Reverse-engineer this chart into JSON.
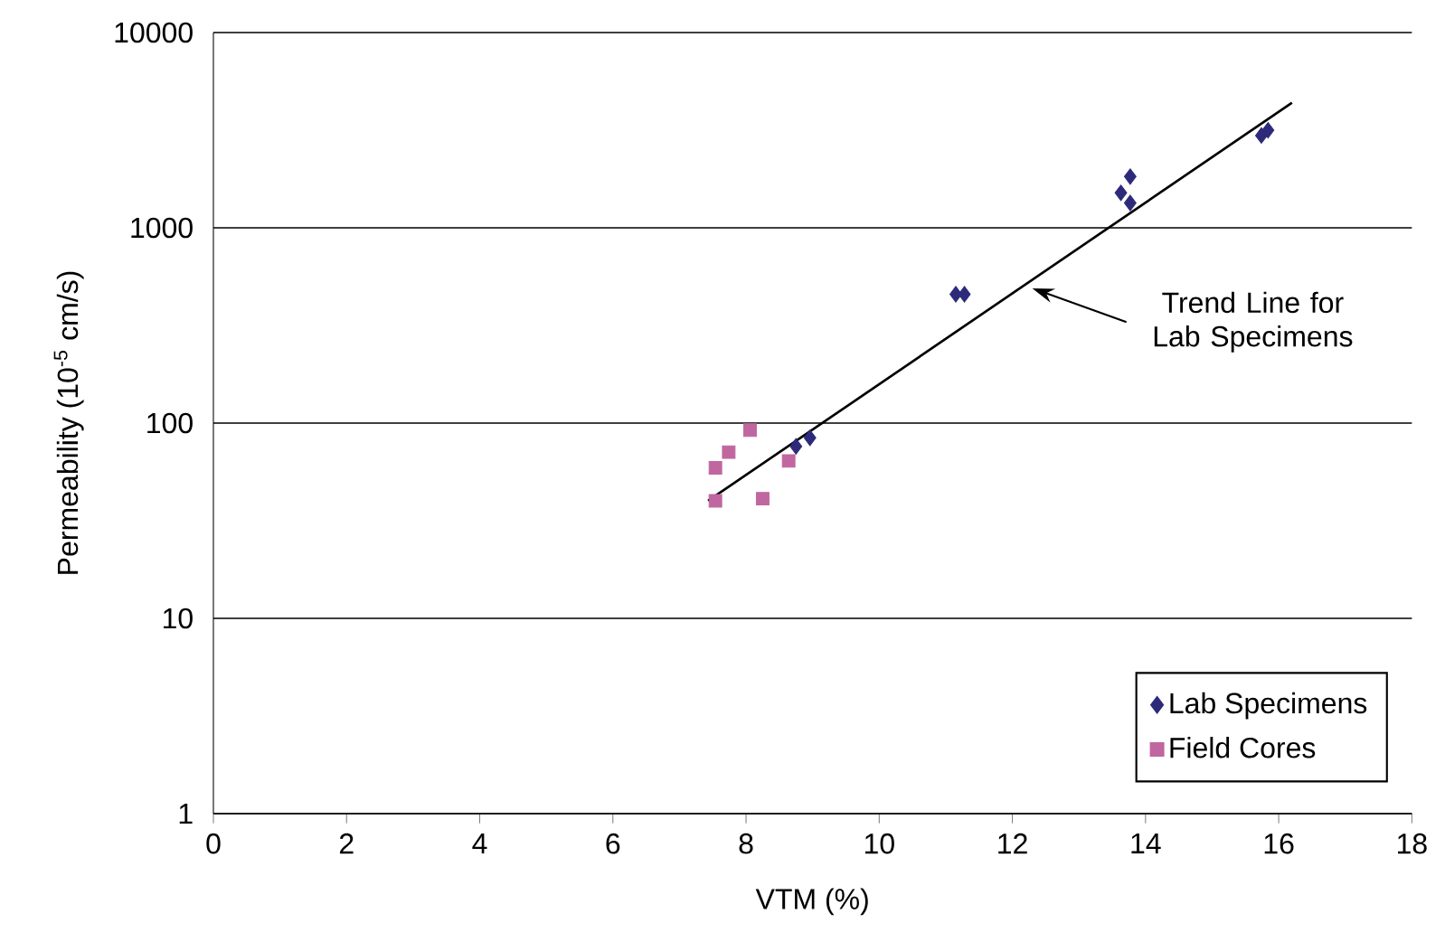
{
  "chart_data": {
    "type": "scatter",
    "xlabel": "VTM (%)",
    "ylabel": "Permeability (10$^{-5}$ cm/s)",
    "xlim": [
      0,
      18
    ],
    "xticks": [
      0,
      2,
      4,
      6,
      8,
      10,
      12,
      14,
      16,
      18
    ],
    "ylim": [
      1,
      10000
    ],
    "yticks": [
      1,
      10,
      100,
      1000,
      10000
    ],
    "log": "y",
    "grid": "y",
    "legend": "bottom right",
    "series": [
      {
        "name": "Lab Specimens",
        "color": "#2e2a7a",
        "marker": "diamond",
        "x": [
          8.75,
          8.96,
          11.15,
          11.28,
          13.63,
          13.77,
          13.77,
          15.74,
          15.84
        ],
        "values": [
          76,
          84,
          457,
          457,
          1510,
          1830,
          1340,
          2970,
          3160
        ]
      },
      {
        "name": "Field Cores",
        "color": "#c0679f",
        "marker": "square",
        "x": [
          7.54,
          7.54,
          7.74,
          8.06,
          8.25,
          8.64
        ],
        "values": [
          40,
          59,
          71,
          92,
          41,
          64
        ]
      },
      {
        "type": "line",
        "color": "#000000",
        "marker": "none",
        "x": [
          7.43,
          16.2
        ],
        "values": [
          40,
          4370
        ]
      }
    ],
    "annotations": [
      {
        "text": "Trend Line for Lab Specimens",
        "x": 12.3,
        "y": 490
      }
    ]
  }
}
